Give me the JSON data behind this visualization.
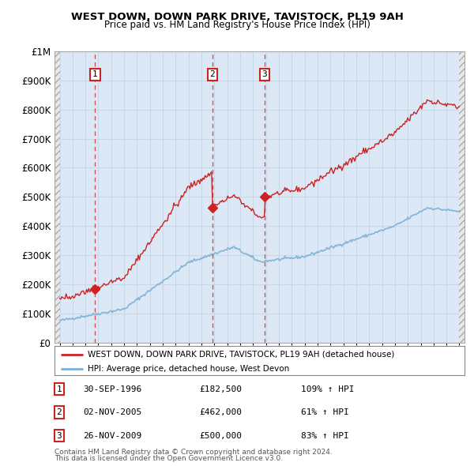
{
  "title1": "WEST DOWN, DOWN PARK DRIVE, TAVISTOCK, PL19 9AH",
  "title2": "Price paid vs. HM Land Registry's House Price Index (HPI)",
  "ylabel_ticks": [
    "£0",
    "£100K",
    "£200K",
    "£300K",
    "£400K",
    "£500K",
    "£600K",
    "£700K",
    "£800K",
    "£900K",
    "£1M"
  ],
  "ytick_vals": [
    0,
    100000,
    200000,
    300000,
    400000,
    500000,
    600000,
    700000,
    800000,
    900000,
    1000000
  ],
  "xlim": [
    1993.6,
    2025.4
  ],
  "ylim": [
    0,
    1000000
  ],
  "legend_line1": "WEST DOWN, DOWN PARK DRIVE, TAVISTOCK, PL19 9AH (detached house)",
  "legend_line2": "HPI: Average price, detached house, West Devon",
  "transactions": [
    {
      "num": 1,
      "date": "30-SEP-1996",
      "price": 182500,
      "pct": "109%",
      "dir": "↑",
      "year": 1996.75
    },
    {
      "num": 2,
      "date": "02-NOV-2005",
      "price": 462000,
      "pct": "61%",
      "dir": "↑",
      "year": 2005.84
    },
    {
      "num": 3,
      "date": "26-NOV-2009",
      "price": 500000,
      "pct": "83%",
      "dir": "↑",
      "year": 2009.9
    }
  ],
  "footnote1": "Contains HM Land Registry data © Crown copyright and database right 2024.",
  "footnote2": "This data is licensed under the Open Government Licence v3.0.",
  "hpi_color": "#7bafd4",
  "price_color": "#cc2222",
  "grid_color": "#c8d8e8",
  "bg_color": "#dce8f5",
  "hatch_bg": "#e8e8e8"
}
